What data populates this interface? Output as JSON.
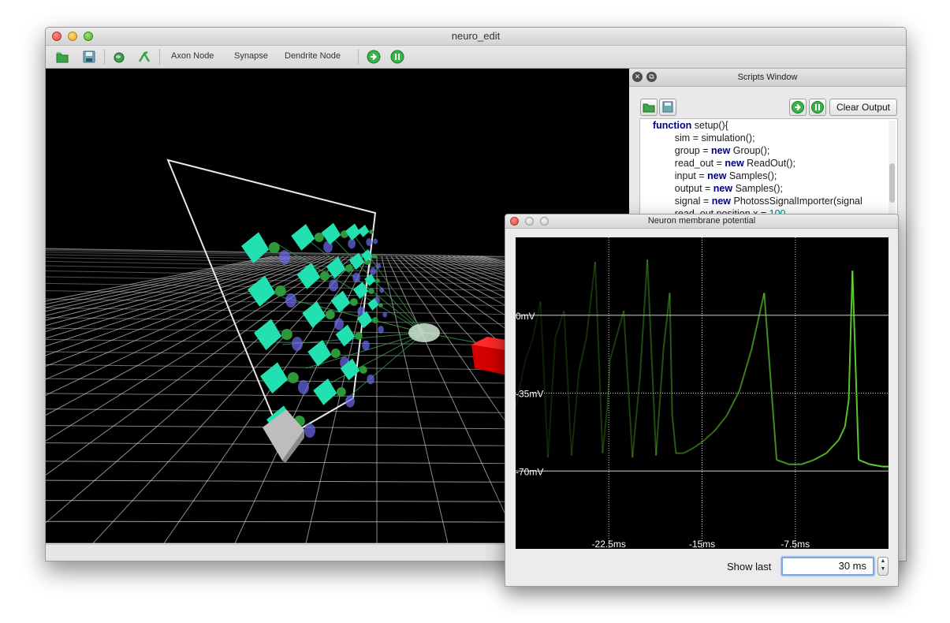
{
  "main_window": {
    "title": "neuro_edit",
    "toolbar": {
      "open_icon": "folder-open-icon",
      "save_icon": "save-disk-icon",
      "neuron_icon": "neuron-sphere-icon",
      "edit_icon": "edit-tool-icon",
      "axon_node_label": "Axon Node",
      "synapse_label": "Synapse",
      "dendrite_node_label": "Dendrite Node",
      "run_icon": "play-arrow-icon",
      "pause_icon": "pause-icon"
    }
  },
  "scripts_window": {
    "title": "Scripts Window",
    "clear_output_label": "Clear Output",
    "code_lines": [
      {
        "kw": "function",
        "rest": " setup(){"
      },
      {
        "kw": "",
        "rest": "        sim = simulation();"
      },
      {
        "kw": "",
        "pre": "        group = ",
        "kw2": "new",
        "rest": " Group();"
      },
      {
        "kw": "",
        "pre": "        read_out = ",
        "kw2": "new",
        "rest": " ReadOut();"
      },
      {
        "kw": "",
        "pre": "        input = ",
        "kw2": "new",
        "rest": " Samples();"
      },
      {
        "kw": "",
        "pre": "        output = ",
        "kw2": "new",
        "rest": " Samples();"
      },
      {
        "kw": "",
        "pre": "        signal = ",
        "kw2": "new",
        "rest": " PhotossSignalImporter(signal"
      },
      {
        "kw": "",
        "pre": "        read_out.position.x = ",
        "num": "100"
      }
    ]
  },
  "neuron_window": {
    "title": "Neuron membrane potential",
    "show_last_label": "Show last",
    "show_last_value": "30 ms"
  },
  "chart_data": {
    "type": "line",
    "y_tick_labels": [
      "0mV",
      "-35mV",
      "-70mV"
    ],
    "y_ticks": [
      0,
      -35,
      -70
    ],
    "x_tick_labels": [
      "-22.5ms",
      "-15ms",
      "-7.5ms"
    ],
    "x_ticks": [
      -22.5,
      -15,
      -7.5
    ],
    "xlim": [
      -30,
      0
    ],
    "ylim": [
      -105,
      35
    ],
    "grid": true,
    "line_color": "#66dd33",
    "series": [
      {
        "x": [
          -30,
          -29.3,
          -28.6,
          -28.0,
          -27.4,
          -26.8,
          -26.1,
          -25.5,
          -24.9,
          -24.3,
          -23.6,
          -23.0,
          -22.6,
          -22.4,
          -21.9,
          -21.3,
          -20.6,
          -20.0,
          -19.4,
          -18.7,
          -18.1,
          -17.6,
          -17.4,
          -17.1,
          -16.5,
          -15.8,
          -15.0,
          -14.0,
          -13.0,
          -12.0,
          -11.0,
          -10.0,
          -9.0,
          -8.0,
          -7.0,
          -6.0,
          -5.0,
          -4.0,
          -3.5,
          -3.2,
          -2.9,
          -2.4,
          -1.5,
          -0.5,
          0
        ],
        "y": [
          -42,
          -22,
          -10,
          6,
          -64,
          -10,
          2,
          -63,
          -25,
          -10,
          24,
          -62,
          -40,
          -20,
          -10,
          2,
          -64,
          -28,
          25,
          -63,
          -15,
          10,
          -45,
          -62,
          -62,
          -60,
          -57,
          -52,
          -45,
          -34,
          -15,
          10,
          -65,
          -67,
          -67,
          -65,
          -62,
          -56,
          -50,
          -38,
          20,
          -65,
          -67,
          -68,
          -68
        ]
      }
    ]
  }
}
